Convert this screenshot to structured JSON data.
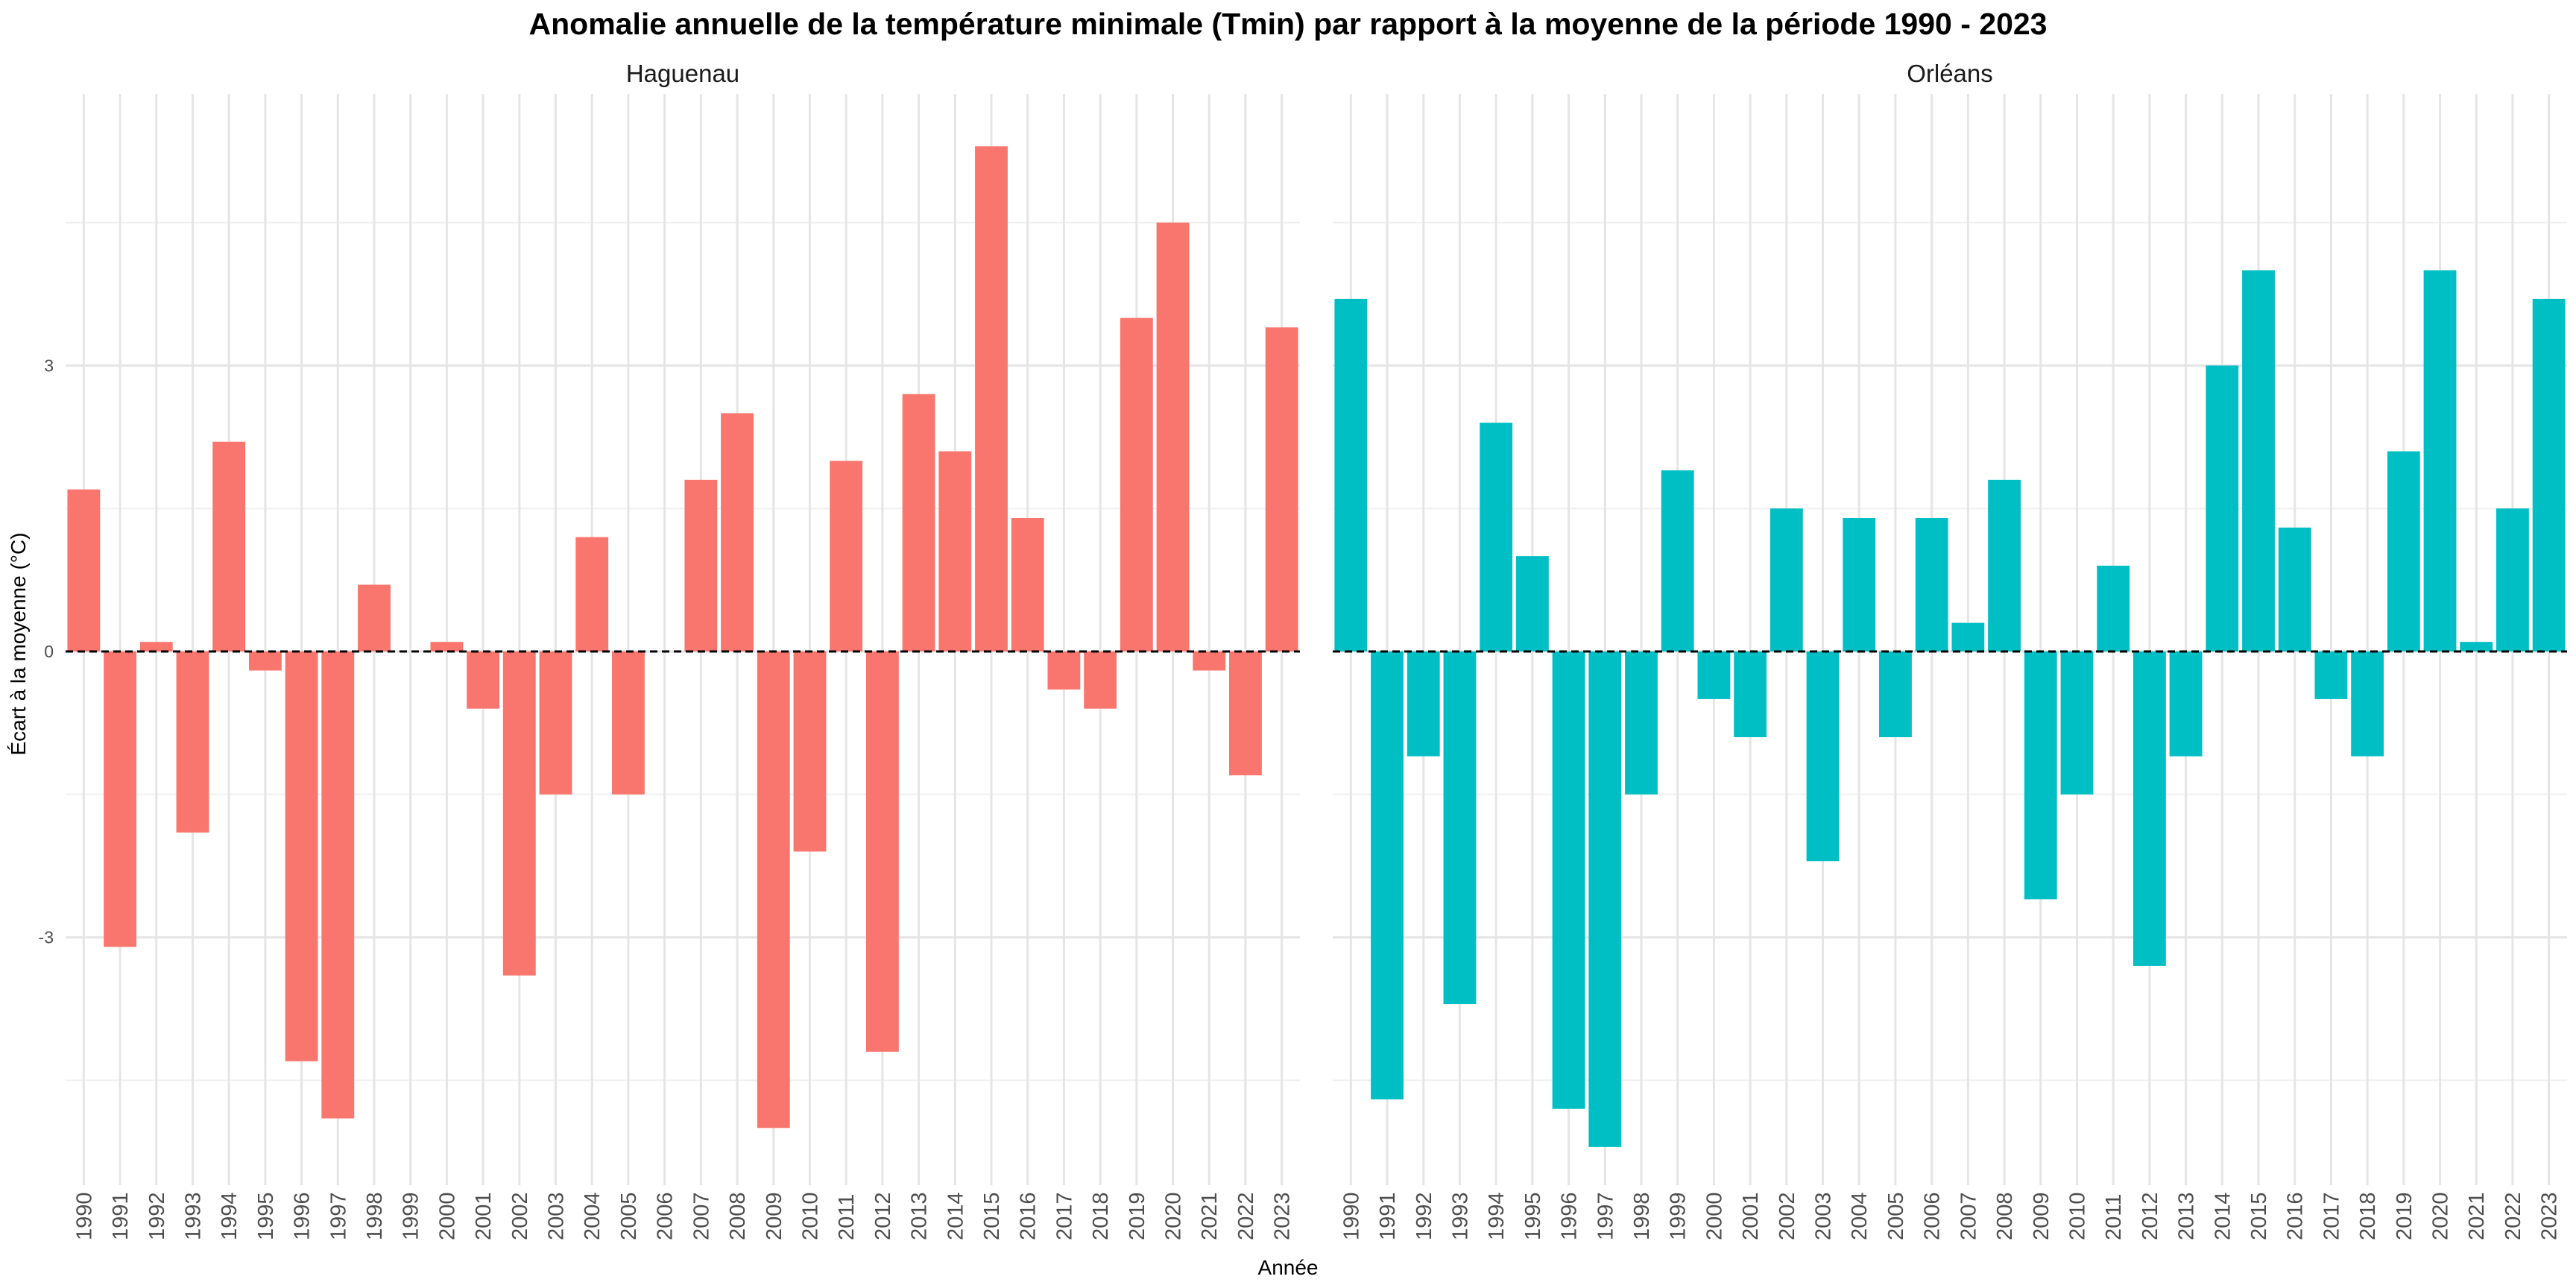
{
  "title": "Anomalie annuelle de la température minimale (Tmin) par rapport à la moyenne de la période 1990 - 2023",
  "xlabel": "Année",
  "ylabel": "Écart à la moyenne (°C)",
  "chart_data": [
    {
      "type": "bar",
      "panel": "Haguenau",
      "color": "#F8766D",
      "categories": [
        "1990",
        "1991",
        "1992",
        "1993",
        "1994",
        "1995",
        "1996",
        "1997",
        "1998",
        "1999",
        "2000",
        "2001",
        "2002",
        "2003",
        "2004",
        "2005",
        "2006",
        "2007",
        "2008",
        "2009",
        "2010",
        "2011",
        "2012",
        "2013",
        "2014",
        "2015",
        "2016",
        "2017",
        "2018",
        "2019",
        "2020",
        "2021",
        "2022",
        "2023"
      ],
      "values": [
        1.7,
        -3.1,
        0.1,
        -1.9,
        2.2,
        -0.2,
        -4.3,
        -4.9,
        0.7,
        0,
        0.1,
        -0.6,
        -3.4,
        -1.5,
        1.2,
        -1.5,
        0,
        1.8,
        2.5,
        -5.0,
        -2.1,
        2.0,
        -4.2,
        2.7,
        2.1,
        5.3,
        1.4,
        -0.4,
        -0.6,
        3.5,
        4.5,
        -0.2,
        -1.3,
        3.4
      ],
      "yticks": [
        -3,
        0,
        3
      ],
      "ylim": [
        -5.6,
        5.85
      ],
      "reference_line": 0
    },
    {
      "type": "bar",
      "panel": "Orléans",
      "color": "#00BFC4",
      "categories": [
        "1990",
        "1991",
        "1992",
        "1993",
        "1994",
        "1995",
        "1996",
        "1997",
        "1998",
        "1999",
        "2000",
        "2001",
        "2002",
        "2003",
        "2004",
        "2005",
        "2006",
        "2007",
        "2008",
        "2009",
        "2010",
        "2011",
        "2012",
        "2013",
        "2014",
        "2015",
        "2016",
        "2017",
        "2018",
        "2019",
        "2020",
        "2021",
        "2022",
        "2023"
      ],
      "values": [
        3.7,
        -4.7,
        -1.1,
        -3.7,
        2.4,
        1.0,
        -4.8,
        -5.2,
        -1.5,
        1.9,
        -0.5,
        -0.9,
        1.5,
        -2.2,
        1.4,
        -0.9,
        1.4,
        0.3,
        1.8,
        -2.6,
        -1.5,
        0.9,
        -3.3,
        -1.1,
        3.0,
        4.0,
        1.3,
        -0.5,
        -1.1,
        2.1,
        4.0,
        0.1,
        1.5,
        3.7
      ],
      "yticks": [
        -3,
        0,
        3
      ],
      "ylim": [
        -5.6,
        5.85
      ],
      "reference_line": 0
    }
  ]
}
